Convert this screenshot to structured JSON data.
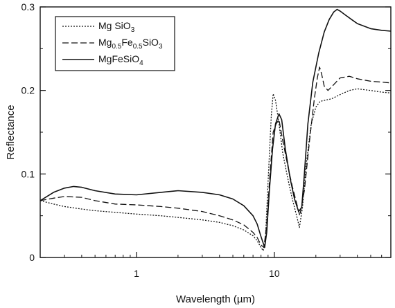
{
  "chart_data": {
    "type": "line",
    "xlabel": "Wavelength (µm)",
    "ylabel": "Reflectance",
    "xscale": "log",
    "xlim": [
      0.2,
      70
    ],
    "ylim": [
      0,
      0.3
    ],
    "xticks": [
      {
        "value": 1,
        "label": "1"
      },
      {
        "value": 10,
        "label": "10"
      }
    ],
    "yticks": [
      {
        "value": 0,
        "label": "0"
      },
      {
        "value": 0.1,
        "label": "0.1"
      },
      {
        "value": 0.2,
        "label": "0.2"
      },
      {
        "value": 0.3,
        "label": "0.3"
      }
    ],
    "grid": false,
    "legend_position": "top-left",
    "series": [
      {
        "name": "Mg SiO3",
        "legend": {
          "base": "Mg SiO",
          "sub": "3"
        },
        "style": "dotted",
        "color": "#111111",
        "x": [
          0.2,
          0.25,
          0.3,
          0.4,
          0.5,
          0.7,
          1,
          1.5,
          2,
          3,
          4,
          5,
          6,
          7,
          7.5,
          8,
          8.3,
          8.6,
          9,
          9.5,
          9.8,
          10.2,
          10.8,
          11.5,
          12.5,
          13.5,
          14.5,
          15.2,
          16,
          17,
          18.5,
          20,
          21.5,
          23,
          26,
          30,
          35,
          40,
          50,
          60,
          70
        ],
        "y": [
          0.068,
          0.064,
          0.061,
          0.058,
          0.056,
          0.054,
          0.052,
          0.05,
          0.048,
          0.045,
          0.042,
          0.038,
          0.033,
          0.026,
          0.02,
          0.012,
          0.008,
          0.02,
          0.09,
          0.17,
          0.196,
          0.188,
          0.16,
          0.125,
          0.095,
          0.07,
          0.05,
          0.036,
          0.06,
          0.11,
          0.16,
          0.18,
          0.187,
          0.188,
          0.19,
          0.195,
          0.2,
          0.202,
          0.2,
          0.198,
          0.197
        ]
      },
      {
        "name": "Mg0.5Fe0.5SiO3",
        "legend": {
          "base": "Mg",
          "sub": "0.5",
          "base2": "Fe",
          "sub2": "0.5",
          "base3": "SiO",
          "sub3": "3"
        },
        "style": "dashed",
        "color": "#111111",
        "x": [
          0.2,
          0.25,
          0.3,
          0.4,
          0.5,
          0.7,
          1,
          1.5,
          2,
          3,
          4,
          5,
          6,
          7,
          7.5,
          8,
          8.4,
          8.8,
          9.3,
          9.8,
          10.3,
          10.8,
          11.5,
          12.5,
          13.5,
          14.5,
          15.3,
          16.5,
          18,
          19.5,
          20.5,
          21.3,
          22,
          23,
          24.5,
          27,
          30,
          35,
          40,
          50,
          60,
          70
        ],
        "y": [
          0.068,
          0.071,
          0.073,
          0.072,
          0.068,
          0.064,
          0.063,
          0.061,
          0.059,
          0.055,
          0.05,
          0.045,
          0.039,
          0.03,
          0.024,
          0.015,
          0.012,
          0.04,
          0.1,
          0.15,
          0.16,
          0.165,
          0.14,
          0.11,
          0.085,
          0.065,
          0.05,
          0.08,
          0.14,
          0.19,
          0.215,
          0.228,
          0.22,
          0.205,
          0.2,
          0.207,
          0.215,
          0.217,
          0.214,
          0.211,
          0.21,
          0.209
        ]
      },
      {
        "name": "MgFeSiO4",
        "legend": {
          "base": "MgFeSiO",
          "sub": "4"
        },
        "style": "solid",
        "color": "#111111",
        "x": [
          0.2,
          0.25,
          0.3,
          0.35,
          0.4,
          0.5,
          0.7,
          1,
          1.5,
          2,
          3,
          4,
          5,
          6,
          7,
          7.5,
          8,
          8.5,
          8.8,
          9.2,
          9.7,
          10.2,
          10.8,
          11.3,
          12,
          13,
          14,
          15,
          15.8,
          16.5,
          17.5,
          19,
          21,
          23,
          25,
          27,
          28.5,
          30,
          33,
          37,
          40,
          50,
          60,
          70
        ],
        "y": [
          0.068,
          0.078,
          0.083,
          0.085,
          0.084,
          0.08,
          0.076,
          0.075,
          0.078,
          0.08,
          0.078,
          0.075,
          0.07,
          0.062,
          0.05,
          0.04,
          0.025,
          0.012,
          0.03,
          0.08,
          0.13,
          0.16,
          0.172,
          0.165,
          0.13,
          0.095,
          0.07,
          0.055,
          0.06,
          0.1,
          0.16,
          0.21,
          0.245,
          0.27,
          0.285,
          0.294,
          0.297,
          0.295,
          0.29,
          0.284,
          0.28,
          0.274,
          0.272,
          0.271
        ]
      }
    ]
  }
}
